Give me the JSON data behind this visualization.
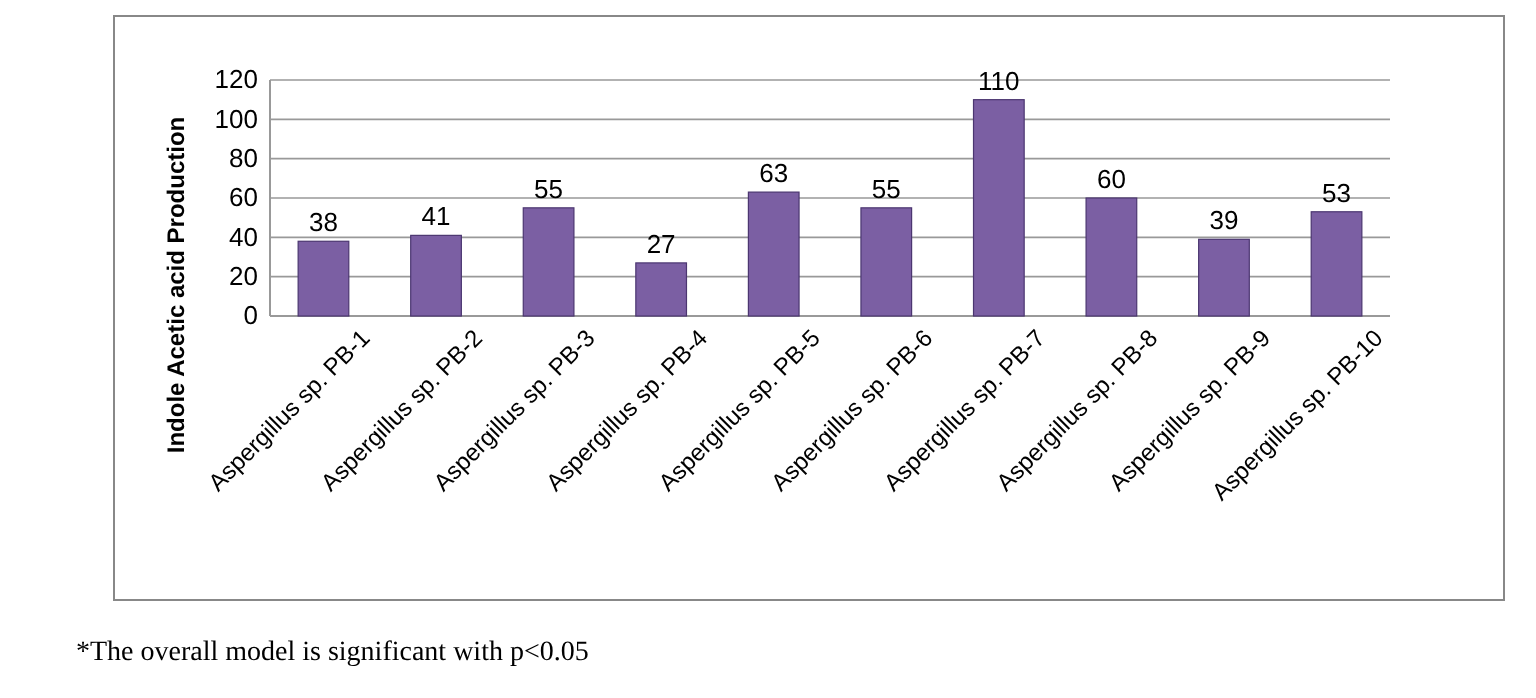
{
  "chart_data": {
    "type": "bar",
    "ylabel": "Indole Acetic acid Production",
    "categories": [
      "Aspergillus sp. PB-1",
      "Aspergillus sp. PB-2",
      "Aspergillus sp. PB-3",
      "Aspergillus sp. PB-4",
      "Aspergillus sp. PB-5",
      "Aspergillus sp. PB-6",
      "Aspergillus sp. PB-7",
      "Aspergillus sp. PB-8",
      "Aspergillus sp. PB-9",
      "Aspergillus sp. PB-10"
    ],
    "values": [
      38,
      41,
      55,
      27,
      63,
      55,
      110,
      60,
      39,
      53
    ],
    "color": "#7b5fa3",
    "ylim": [
      0,
      120
    ],
    "yticks": [
      0,
      20,
      40,
      60,
      80,
      100,
      120
    ],
    "grid": "y",
    "data_labels": true,
    "annotations": [
      "*The overall model is significant with p<0.05"
    ]
  }
}
